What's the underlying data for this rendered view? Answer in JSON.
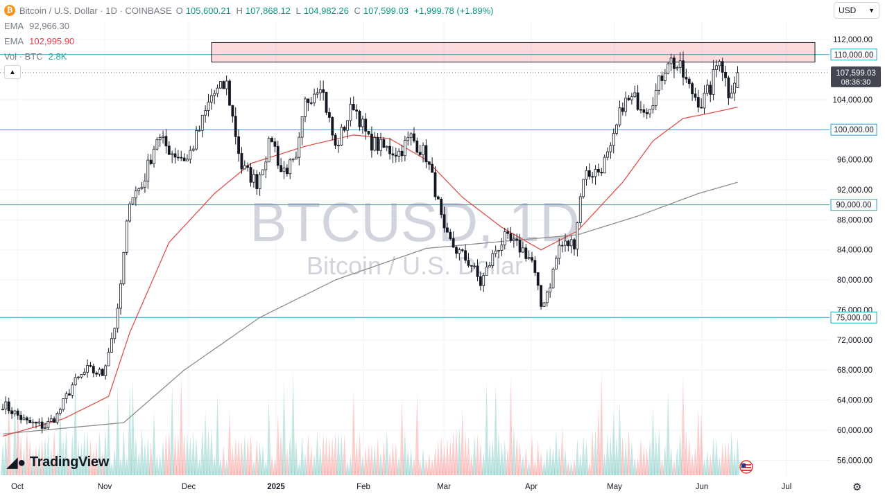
{
  "header": {
    "symbol_badge": "₿",
    "title": "Bitcoin / U.S. Dollar · 1D · COINBASE",
    "ohlc": {
      "o_label": "O",
      "o": "105,600.21",
      "h_label": "H",
      "h": "107,868.12",
      "l_label": "L",
      "l": "104,982.26",
      "c_label": "C",
      "c": "107,599.03",
      "change": "+1,999.78 (+1.89%)"
    }
  },
  "indicators": [
    {
      "label": "EMA",
      "value": "92,966.30"
    },
    {
      "label": "EMA",
      "value": "102,995.90"
    },
    {
      "label": "Vol · BTC",
      "value": "2.8K"
    }
  ],
  "currency": {
    "label": "USD",
    "icon": "chevron-down-icon"
  },
  "watermark": {
    "symbol": "BTCUSD, 1D",
    "name": "Bitcoin / U.S. Dollar"
  },
  "brand": {
    "name": "TradingView"
  },
  "chart_data": {
    "type": "candlestick",
    "x_tick_labels": [
      "Oct",
      "Nov",
      "Dec",
      "2025",
      "Feb",
      "Mar",
      "Apr",
      "May",
      "Jun",
      "Jul"
    ],
    "y_tick_labels": [
      56000,
      60000,
      64000,
      68000,
      72000,
      76000,
      80000,
      84000,
      88000,
      92000,
      96000,
      100000,
      104000,
      108000,
      112000
    ],
    "ylim": [
      54000,
      114500
    ],
    "horizontal_levels": [
      {
        "value": 110000,
        "label": "110,000.00"
      },
      {
        "value": 100000,
        "label": "100,000.00"
      },
      {
        "value": 90000,
        "label": "90,000.00"
      },
      {
        "value": 75000,
        "label": "75,000.00"
      }
    ],
    "current_price": {
      "value": 107599.03,
      "label": "107,599.03",
      "countdown": "08:36:30"
    },
    "resistance_zone": {
      "low": 109000,
      "high": 111600
    },
    "close_anchors": [
      [
        0,
        63500
      ],
      [
        8,
        61000
      ],
      [
        14,
        60500
      ],
      [
        18,
        62000
      ],
      [
        23,
        66000
      ],
      [
        28,
        68000
      ],
      [
        33,
        67500
      ],
      [
        38,
        75500
      ],
      [
        42,
        91000
      ],
      [
        46,
        92500
      ],
      [
        51,
        99000
      ],
      [
        56,
        97000
      ],
      [
        61,
        96000
      ],
      [
        65,
        100000
      ],
      [
        69,
        104500
      ],
      [
        74,
        106000
      ],
      [
        79,
        95000
      ],
      [
        84,
        93000
      ],
      [
        89,
        99000
      ],
      [
        92,
        94500
      ],
      [
        97,
        95500
      ],
      [
        100,
        103500
      ],
      [
        105,
        106500
      ],
      [
        110,
        97500
      ],
      [
        116,
        103500
      ],
      [
        121,
        98500
      ],
      [
        126,
        97500
      ],
      [
        131,
        97000
      ],
      [
        135,
        99000
      ],
      [
        140,
        96500
      ],
      [
        143,
        92000
      ],
      [
        146,
        86000
      ],
      [
        150,
        84000
      ],
      [
        155,
        82000
      ],
      [
        158,
        79500
      ],
      [
        163,
        84000
      ],
      [
        166,
        85500
      ],
      [
        172,
        84000
      ],
      [
        175,
        82500
      ],
      [
        178,
        76500
      ],
      [
        181,
        79500
      ],
      [
        184,
        84500
      ],
      [
        189,
        85000
      ],
      [
        192,
        94000
      ],
      [
        197,
        94500
      ],
      [
        201,
        97000
      ],
      [
        205,
        103500
      ],
      [
        209,
        104000
      ],
      [
        213,
        103000
      ],
      [
        216,
        105000
      ],
      [
        220,
        109500
      ],
      [
        224,
        108000
      ],
      [
        227,
        105500
      ],
      [
        231,
        103500
      ],
      [
        234,
        105500
      ],
      [
        237,
        110000
      ],
      [
        240,
        105000
      ],
      [
        243,
        107599
      ]
    ],
    "ema_fast": [
      [
        0,
        59200
      ],
      [
        20,
        61500
      ],
      [
        35,
        64500
      ],
      [
        42,
        73000
      ],
      [
        55,
        85000
      ],
      [
        70,
        91500
      ],
      [
        82,
        95500
      ],
      [
        100,
        97800
      ],
      [
        116,
        99300
      ],
      [
        128,
        98800
      ],
      [
        140,
        96000
      ],
      [
        152,
        91000
      ],
      [
        165,
        87000
      ],
      [
        178,
        84000
      ],
      [
        190,
        86500
      ],
      [
        205,
        93000
      ],
      [
        215,
        98500
      ],
      [
        225,
        101500
      ],
      [
        235,
        102300
      ],
      [
        243,
        103000
      ]
    ],
    "ema_slow": [
      [
        0,
        59500
      ],
      [
        40,
        61000
      ],
      [
        60,
        68000
      ],
      [
        85,
        75000
      ],
      [
        110,
        80000
      ],
      [
        140,
        84200
      ],
      [
        170,
        85300
      ],
      [
        190,
        86000
      ],
      [
        210,
        88500
      ],
      [
        230,
        91500
      ],
      [
        243,
        93000
      ]
    ],
    "volume": {
      "max_label": "relative"
    }
  }
}
